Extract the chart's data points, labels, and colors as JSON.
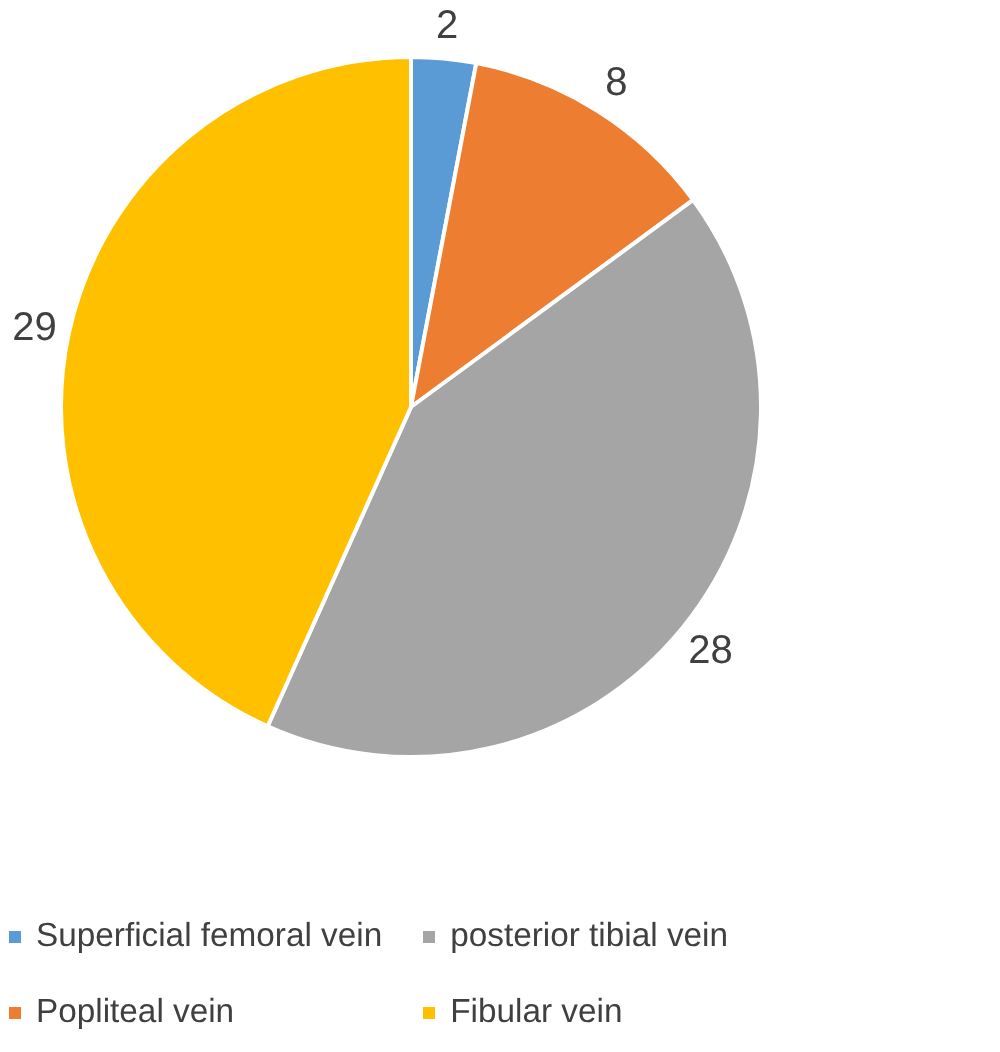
{
  "chart_data": {
    "type": "pie",
    "categories": [
      "Superficial femoral vein",
      "Popliteal vein",
      "posterior tibial vein",
      "Fibular vein"
    ],
    "values": [
      2,
      8,
      28,
      29
    ],
    "colors": [
      "#5b9bd5",
      "#ed7d31",
      "#a5a5a5",
      "#ffc000"
    ],
    "data_labels": true,
    "legend": "bottom"
  }
}
